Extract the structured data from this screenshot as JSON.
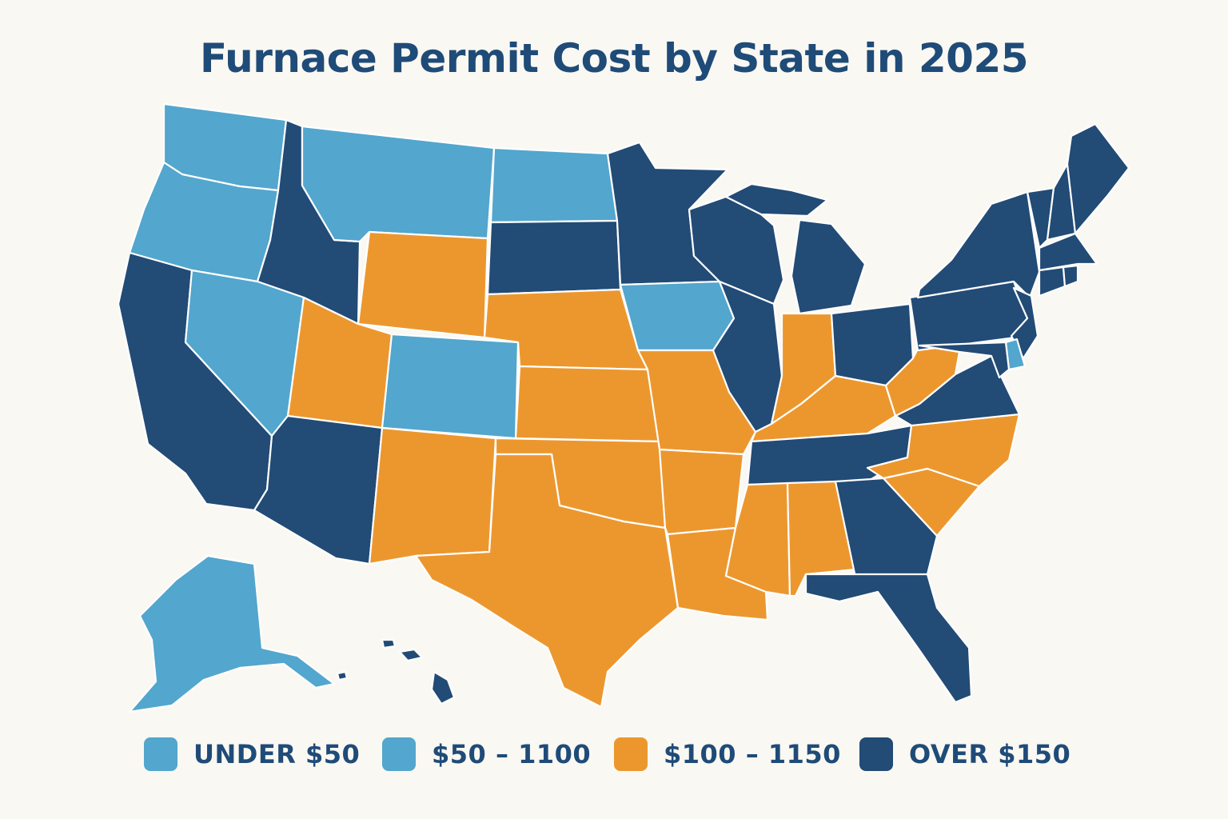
{
  "title": "Furnace Permit Cost by State in 2025",
  "colors": {
    "light_blue": "#53a6cd",
    "orange": "#ec972e",
    "navy": "#224b76",
    "text": "#1f4b78",
    "background": "#faf8f2"
  },
  "legend": [
    {
      "label": "UNDER $50",
      "category": "light_blue"
    },
    {
      "label": "$50 – 1100",
      "category": "light_blue"
    },
    {
      "label": "$100 – 1150",
      "category": "orange"
    },
    {
      "label": "OVER $150",
      "category": "navy"
    }
  ],
  "states": {
    "WA": "light_blue",
    "OR": "light_blue",
    "CA": "navy",
    "ID": "navy",
    "NV": "light_blue",
    "MT": "light_blue",
    "WY": "orange",
    "UT": "orange",
    "AZ": "navy",
    "CO": "light_blue",
    "NM": "orange",
    "ND": "light_blue",
    "SD": "navy",
    "NE": "orange",
    "KS": "orange",
    "OK": "orange",
    "TX": "orange",
    "MN": "navy",
    "IA": "light_blue",
    "MO": "orange",
    "AR": "orange",
    "LA": "orange",
    "WI": "navy",
    "IL": "navy",
    "MI": "navy",
    "IN": "orange",
    "OH": "navy",
    "KY": "orange",
    "TN": "navy",
    "MS": "orange",
    "AL": "orange",
    "GA": "navy",
    "FL": "navy",
    "SC": "orange",
    "NC": "orange",
    "VA": "navy",
    "WV": "orange",
    "PA": "navy",
    "NY": "navy",
    "NJ": "navy",
    "DE": "light_blue",
    "MD": "navy",
    "VT": "navy",
    "NH": "navy",
    "ME": "navy",
    "MA": "navy",
    "CT": "navy",
    "RI": "navy",
    "AK": "light_blue",
    "HI": "navy"
  }
}
